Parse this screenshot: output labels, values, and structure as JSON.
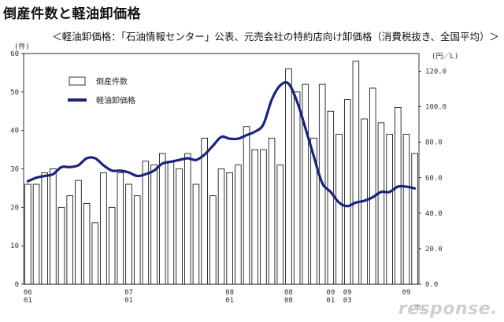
{
  "header": {
    "title": "倒産件数と軽油卸価格",
    "subtitle": "＜軽油卸価格：「石油情報センター」公表、元売会社の特約店向け卸価格（消費税抜き、全国平均）＞"
  },
  "watermark": "response.",
  "chart_data": {
    "type": "bar+line",
    "title": "倒産件数と軽油卸価格",
    "x_tick_labels": [
      {
        "index": 0,
        "lines": [
          "06",
          "01"
        ]
      },
      {
        "index": 12,
        "lines": [
          "07",
          "01"
        ]
      },
      {
        "index": 24,
        "lines": [
          "08",
          "01"
        ]
      },
      {
        "index": 31,
        "lines": [
          "08",
          "08"
        ]
      },
      {
        "index": 36,
        "lines": [
          "09",
          "01"
        ]
      },
      {
        "index": 38,
        "lines": [
          "09",
          "03"
        ]
      },
      {
        "index": 45,
        "lines": [
          "09",
          ""
        ]
      }
    ],
    "x_unit_label": "(年)",
    "left_axis": {
      "unit": "(件)",
      "ylim": [
        0,
        60
      ],
      "ticks": [
        0,
        10,
        20,
        30,
        40,
        50,
        60
      ]
    },
    "right_axis": {
      "unit": "(円／L)",
      "ylim": [
        0,
        130
      ],
      "ticks": [
        "0.0",
        "20.0",
        "40.0",
        "60.0",
        "80.0",
        "100.0",
        "120.0"
      ]
    },
    "series": [
      {
        "name": "倒産件数",
        "type": "bar",
        "axis": "left",
        "color": "#ffffff",
        "values": [
          26,
          26,
          29,
          30,
          20,
          23,
          27,
          21,
          16,
          29,
          20,
          29,
          26,
          23,
          32,
          31,
          34,
          32,
          30,
          34,
          26,
          38,
          23,
          30,
          29,
          31,
          41,
          35,
          35,
          38,
          31,
          56,
          50,
          52,
          38,
          52,
          45,
          39,
          48,
          58,
          43,
          51,
          42,
          39,
          46,
          39,
          34
        ]
      },
      {
        "name": "軽油卸価格",
        "type": "line",
        "axis": "right",
        "color": "#1a237e",
        "values": [
          58,
          60,
          61,
          62,
          66,
          66,
          67,
          71,
          71,
          67,
          64,
          64,
          63,
          61,
          62,
          64,
          68,
          69,
          70,
          71,
          70,
          73,
          78,
          83,
          82,
          82,
          84,
          86,
          90,
          104,
          112,
          113,
          103,
          88,
          72,
          57,
          52,
          46,
          44,
          46,
          47,
          49,
          52,
          52,
          55,
          55,
          54
        ]
      }
    ]
  }
}
